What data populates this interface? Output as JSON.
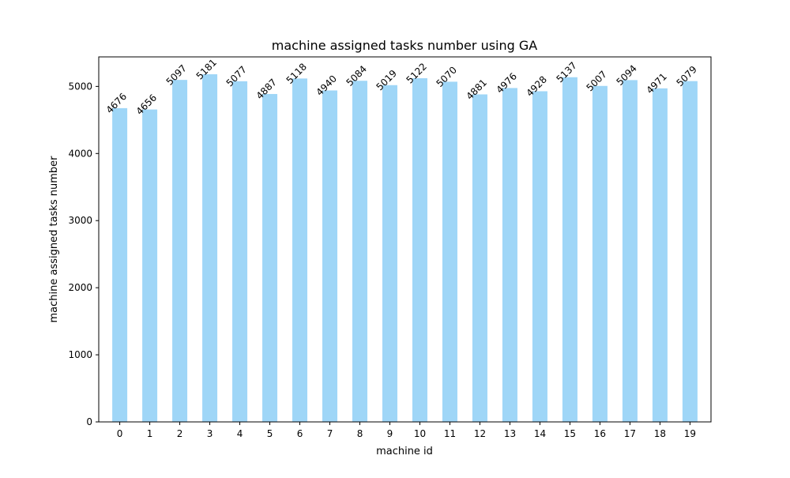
{
  "chart_data": {
    "type": "bar",
    "title": "machine assigned tasks number using GA",
    "xlabel": "machine id",
    "ylabel": "machine assigned tasks number",
    "categories": [
      "0",
      "1",
      "2",
      "3",
      "4",
      "5",
      "6",
      "7",
      "8",
      "9",
      "10",
      "11",
      "12",
      "13",
      "14",
      "15",
      "16",
      "17",
      "18",
      "19"
    ],
    "values": [
      4676,
      4656,
      5097,
      5181,
      5077,
      4887,
      5118,
      4940,
      5084,
      5019,
      5122,
      5070,
      4881,
      4976,
      4928,
      5137,
      5007,
      5094,
      4971,
      5079
    ],
    "ylim": [
      0,
      5440
    ],
    "yticks": [
      0,
      1000,
      2000,
      3000,
      4000,
      5000
    ],
    "bar_color": "#9fd6f7",
    "grid": false,
    "legend": false
  }
}
